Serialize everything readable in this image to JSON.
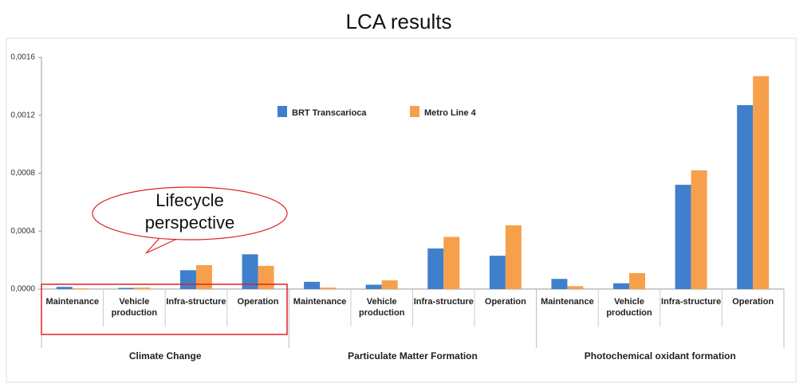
{
  "chart_data": {
    "type": "bar",
    "title": "LCA results",
    "groups": [
      "Climate Change",
      "Particulate Matter Formation",
      "Photochemical oxidant formation"
    ],
    "categories": [
      "Maintenance",
      "Vehicle production",
      "Infra-structure",
      "Operation",
      "Maintenance",
      "Vehicle production",
      "Infra-structure",
      "Operation",
      "Maintenance",
      "Vehicle production",
      "Infra-structure",
      "Operation"
    ],
    "series": [
      {
        "name": "BRT Transcarioca",
        "color": "#3f7fcb",
        "values": [
          1.5e-05,
          8e-06,
          0.00013,
          0.00024,
          5e-05,
          3e-05,
          0.00028,
          0.00023,
          7e-05,
          4e-05,
          0.00072,
          0.00127
        ]
      },
      {
        "name": "Metro Line 4",
        "color": "#f7a04c",
        "values": [
          5e-06,
          1e-05,
          0.000165,
          0.00016,
          1e-05,
          6e-05,
          0.00036,
          0.00044,
          2e-05,
          0.00011,
          0.00082,
          0.00147
        ]
      }
    ],
    "ylim": [
      0,
      0.0016
    ],
    "yticks": [
      {
        "value": 0,
        "label": "0,0000"
      },
      {
        "value": 0.0004,
        "label": "0,0004"
      },
      {
        "value": 0.0008,
        "label": "0,0008"
      },
      {
        "value": 0.0012,
        "label": "0,0012"
      },
      {
        "value": 0.0016,
        "label": "0,0016"
      }
    ],
    "legend": "top-center",
    "annotations": [
      "Lifecycle perspective"
    ]
  }
}
